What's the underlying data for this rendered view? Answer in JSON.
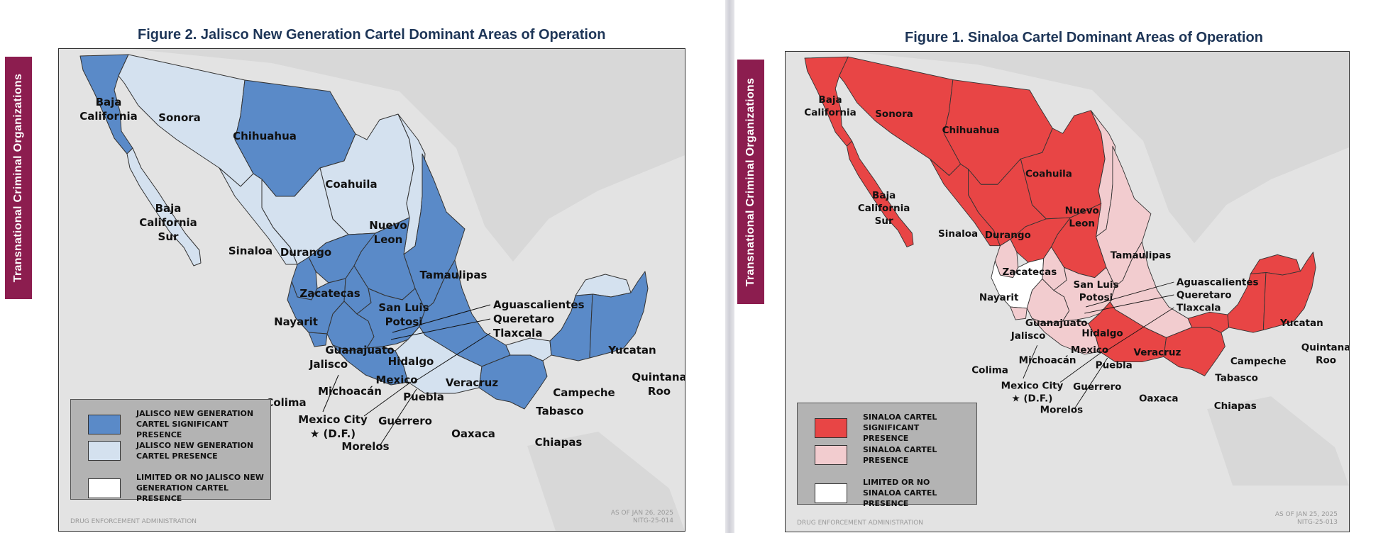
{
  "figure2": {
    "title": "Figure 2. Jalisco New Generation Cartel Dominant Areas of Operation",
    "side_tab": "Transnational Criminal Organizations",
    "legend": [
      {
        "text": "JALISCO NEW GENERATION CARTEL SIGNIFICANT PRESENCE",
        "color": "#5a8ac8"
      },
      {
        "text": "JALISCO NEW GENERATION CARTEL PRESENCE",
        "color": "#d4e1ef"
      },
      {
        "text": "LIMITED OR NO JALISCO NEW GENERATION CARTEL PRESENCE",
        "color": "#ffffff"
      }
    ],
    "footer_left": "DRUG ENFORCEMENT ADMINISTRATION",
    "footer_date": "AS OF JAN 26, 2025",
    "footer_code": "NITG-25-014"
  },
  "figure1": {
    "title": "Figure 1. Sinaloa Cartel Dominant Areas of Operation",
    "side_tab": "Transnational Criminal Organizations",
    "legend": [
      {
        "text": "SINALOA CARTEL SIGNIFICANT PRESENCE",
        "color": "#e84545"
      },
      {
        "text": "SINALOA CARTEL PRESENCE",
        "color": "#f2cccf"
      },
      {
        "text": "LIMITED OR NO SINALOA CARTEL PRESENCE",
        "color": "#ffffff"
      }
    ],
    "footer_left": "DRUG ENFORCEMENT ADMINISTRATION",
    "footer_date": "AS OF JAN 25, 2025",
    "footer_code": "NITG-25-013"
  },
  "map_labels": {
    "baja_california": [
      "Baja",
      "California"
    ],
    "sonora": "Sonora",
    "chihuahua": "Chihuahua",
    "coahuila": "Coahuila",
    "baja_california_sur": [
      "Baja",
      "California",
      "Sur"
    ],
    "nuevo_leon": [
      "Nuevo",
      "Leon"
    ],
    "sinaloa": "Sinaloa",
    "durango": "Durango",
    "tamaulipas": "Tamaulipas",
    "zacatecas": "Zacatecas",
    "aguascalientes": "Aguascalientes",
    "san_luis_potosi": [
      "San Luis",
      "Potosi"
    ],
    "queretaro": "Queretaro",
    "tlaxcala": "Tlaxcala",
    "nayarit": "Nayarit",
    "guanajuato": "Guanajuato",
    "hidalgo": "Hidalgo",
    "jalisco": "Jalisco",
    "mexico": "Mexico",
    "veracruz": "Veracruz",
    "michoacan": "Michoacán",
    "puebla": "Puebla",
    "colima": "Colima",
    "yucatan": "Yucatan",
    "quintana_roo": [
      "Quintana",
      "Roo"
    ],
    "campeche": "Campeche",
    "tabasco": "Tabasco",
    "mexico_city": [
      "Mexico City",
      "★ (D.F.)"
    ],
    "guerrero": "Guerrero",
    "oaxaca": "Oaxaca",
    "chiapas": "Chiapas",
    "morelos": "Morelos"
  },
  "colors": {
    "jng_significant": "#5a8ac8",
    "jng_presence": "#d4e1ef",
    "sin_significant": "#e84545",
    "sin_presence": "#f2cccf",
    "none": "#ffffff",
    "land_bg": "#d2d2d2",
    "tab": "#8c1d4f"
  },
  "state_status": {
    "jng": {
      "bc": "sig",
      "bcs": "pres",
      "son": "pres",
      "chih": "sig",
      "coah": "pres",
      "nl": "pres",
      "tamps": "sig",
      "sin": "pres",
      "dgo": "pres",
      "zac": "sig",
      "slp": "sig",
      "nay": "sig",
      "jal": "sig",
      "col": "sig",
      "mich": "sig",
      "gto": "sig",
      "gro": "sig",
      "center": "sig",
      "ver": "sig",
      "oax": "pres",
      "chis": "sig",
      "tab": "pres",
      "camp": "sig",
      "yuc": "pres",
      "qroo": "sig"
    },
    "sin": {
      "bc": "sig",
      "bcs": "sig",
      "son": "sig",
      "chih": "sig",
      "coah": "sig",
      "nl": "pres",
      "tamps": "pres",
      "sin": "sig",
      "dgo": "sig",
      "zac": "sig",
      "slp": "sig",
      "nay": "pres",
      "jal": "none",
      "col": "pres",
      "mich": "pres",
      "gto": "pres",
      "gro": "pres",
      "center": "pres",
      "ver": "pres",
      "oax": "sig",
      "chis": "sig",
      "tab": "sig",
      "camp": "sig",
      "yuc": "sig",
      "qroo": "sig"
    }
  }
}
